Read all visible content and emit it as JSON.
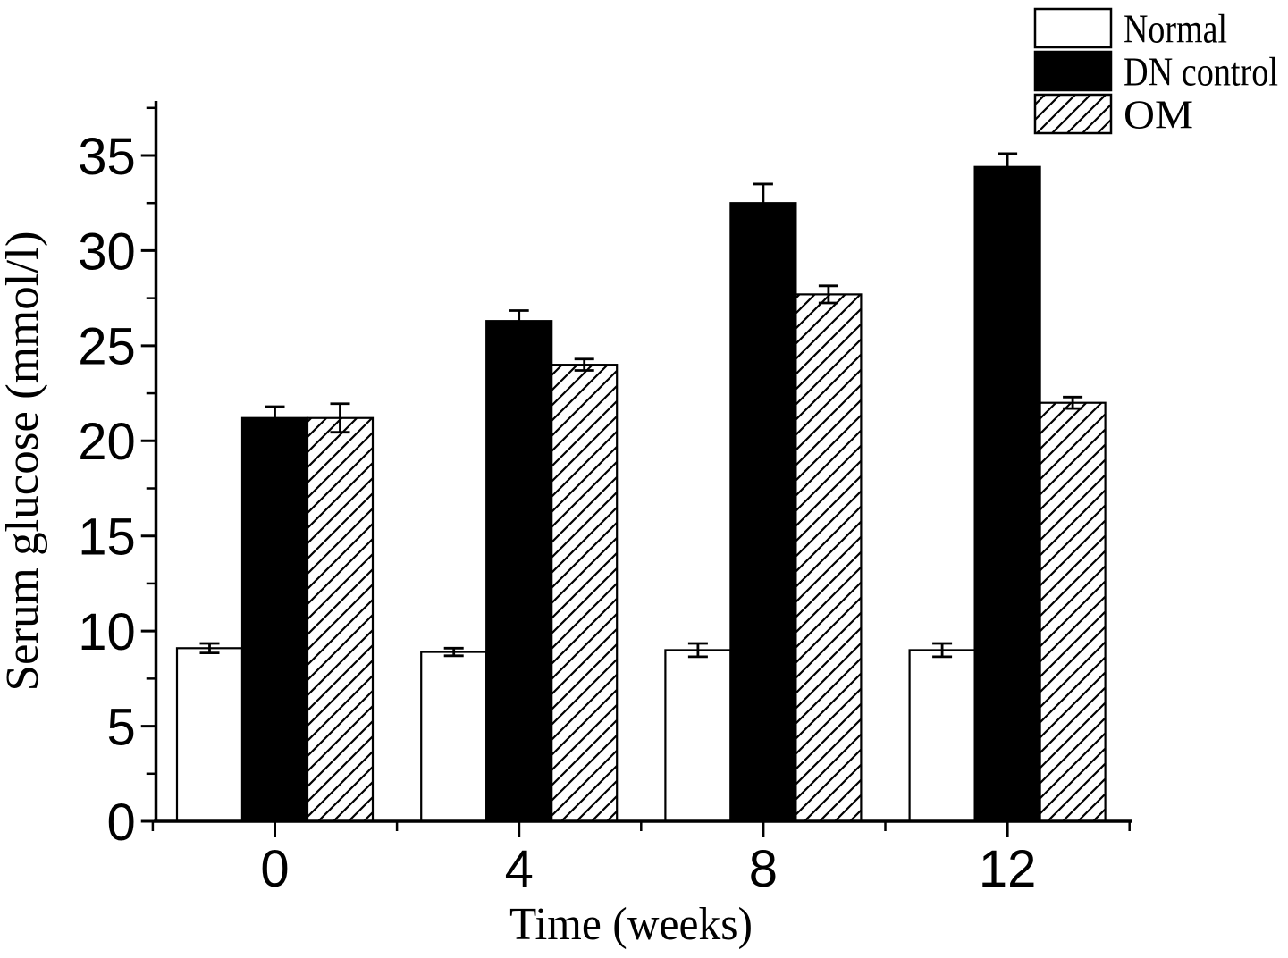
{
  "figure": {
    "background_color": "#ffffff",
    "ink_color": "#000000"
  },
  "chart_data": {
    "type": "bar",
    "title": "",
    "xlabel": "Time (weeks)",
    "ylabel": "Serum glucose (mmol/l)",
    "categories": [
      "0",
      "4",
      "8",
      "12"
    ],
    "series": [
      {
        "name": "Normal",
        "fill": "white",
        "values": [
          9.1,
          8.9,
          9.0,
          9.0
        ],
        "errors": [
          0.25,
          0.2,
          0.35,
          0.35
        ],
        "error_style": "both"
      },
      {
        "name": "DN control",
        "fill": "black",
        "values": [
          21.2,
          26.3,
          32.5,
          34.4
        ],
        "errors": [
          0.6,
          0.55,
          1.0,
          0.7
        ],
        "error_style": "upper"
      },
      {
        "name": "OM",
        "fill": "hatch",
        "values": [
          21.2,
          24.0,
          27.7,
          22.0
        ],
        "errors": [
          0.75,
          0.3,
          0.45,
          0.3
        ],
        "error_style": "both"
      }
    ],
    "yaxis": {
      "min": 0,
      "max": 37.8,
      "major_ticks": [
        0,
        5,
        10,
        15,
        20,
        25,
        30,
        35
      ],
      "minor_step": 2.5,
      "grid": false
    },
    "xaxis": {
      "tick_values": [
        "0",
        "4",
        "8",
        "12"
      ]
    },
    "legend": {
      "position": "top-right",
      "entries": [
        "Normal",
        "DN control",
        "OM"
      ]
    }
  }
}
